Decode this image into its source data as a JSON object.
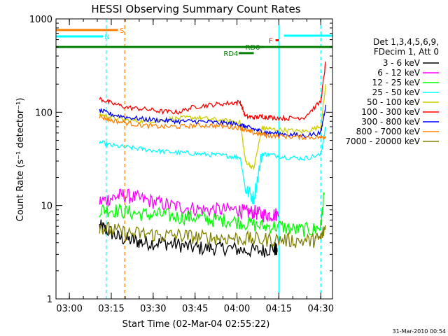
{
  "chart_data": {
    "type": "line",
    "title": "HESSI Observing Summary Count Rates",
    "xlabel": "Start Time (02-Mar-04 02:55:22)",
    "ylabel": "Count Rate (s⁻¹ detector⁻¹)",
    "y_scale": "log",
    "ylim": [
      1,
      1000
    ],
    "y_ticks": [
      {
        "v": 1,
        "label": "1"
      },
      {
        "v": 10,
        "label": "10"
      },
      {
        "v": 100,
        "label": "100"
      },
      {
        "v": 1000,
        "label": "1000"
      }
    ],
    "x_axis_range_hours": [
      2.92,
      4.57
    ],
    "x_ticks": [
      {
        "t": 3.0,
        "label": "03:00"
      },
      {
        "t": 3.25,
        "label": "03:15"
      },
      {
        "t": 3.5,
        "label": "03:30"
      },
      {
        "t": 3.75,
        "label": "03:45"
      },
      {
        "t": 4.0,
        "label": "04:00"
      },
      {
        "t": 4.25,
        "label": "04:15"
      },
      {
        "t": 4.5,
        "label": "04:30"
      }
    ],
    "legend_header": [
      "Det 1,3,4,5,6,9,",
      "FDecim 1, Att 0"
    ],
    "legend_placement": "right",
    "series": [
      {
        "name": "3 - 6 keV",
        "color": "#000000",
        "x": [
          3.18,
          3.22,
          3.3,
          3.38,
          3.45,
          3.55,
          3.65,
          3.75,
          3.85,
          3.95,
          4.05,
          4.15,
          4.22,
          4.24
        ],
        "y": [
          6,
          5.5,
          4.5,
          4.2,
          4,
          4,
          3.8,
          3.5,
          3.5,
          3.5,
          3.3,
          3.3,
          3.5,
          3.2
        ]
      },
      {
        "name": "6 - 12 keV",
        "color": "#ff00ff",
        "x": [
          3.18,
          3.25,
          3.32,
          3.4,
          3.5,
          3.6,
          3.7,
          3.8,
          3.9,
          4.0,
          4.05,
          4.1,
          4.15,
          4.2,
          4.25
        ],
        "y": [
          11,
          12,
          13,
          12,
          11,
          10,
          9.5,
          9,
          9,
          9,
          8.5,
          8.5,
          8,
          8,
          8
        ]
      },
      {
        "name": "12 - 25 keV",
        "color": "#00ff00",
        "x": [
          3.18,
          3.25,
          3.35,
          3.45,
          3.55,
          3.65,
          3.75,
          3.85,
          3.95,
          4.05,
          4.15,
          4.25,
          4.35,
          4.45,
          4.5,
          4.52
        ],
        "y": [
          9,
          9,
          8.5,
          8,
          8,
          7.5,
          7.5,
          7,
          7,
          6.5,
          6,
          6,
          5.5,
          5.5,
          6,
          13
        ]
      },
      {
        "name": "25 - 50 keV",
        "color": "#00ffff",
        "x": [
          3.18,
          3.25,
          3.35,
          3.45,
          3.55,
          3.65,
          3.75,
          3.85,
          3.95,
          4.02,
          4.05,
          4.1,
          4.15,
          4.2,
          4.3,
          4.4,
          4.5,
          4.53
        ],
        "y": [
          48,
          44,
          42,
          40,
          38,
          37,
          36,
          35,
          34,
          33,
          15,
          12,
          36,
          35,
          33,
          32,
          35,
          70
        ]
      },
      {
        "name": "50 - 100 keV",
        "color": "#cccc00",
        "x": [
          3.18,
          3.25,
          3.35,
          3.45,
          3.55,
          3.65,
          3.75,
          3.85,
          3.95,
          4.02,
          4.05,
          4.1,
          4.15,
          4.2,
          4.3,
          4.4,
          4.5,
          4.53
        ],
        "y": [
          95,
          88,
          82,
          80,
          82,
          86,
          88,
          84,
          80,
          78,
          30,
          25,
          68,
          66,
          64,
          62,
          70,
          200
        ]
      },
      {
        "name": "100 - 300 keV",
        "color": "#ff0000",
        "x": [
          3.18,
          3.25,
          3.35,
          3.45,
          3.55,
          3.65,
          3.75,
          3.85,
          3.95,
          4.02,
          4.05,
          4.1,
          4.15,
          4.2,
          4.3,
          4.4,
          4.5,
          4.53
        ],
        "y": [
          140,
          125,
          112,
          108,
          102,
          100,
          115,
          120,
          125,
          128,
          90,
          88,
          90,
          88,
          86,
          88,
          130,
          350
        ]
      },
      {
        "name": "300 - 800 keV",
        "color": "#0000ff",
        "x": [
          3.18,
          3.25,
          3.35,
          3.45,
          3.55,
          3.65,
          3.75,
          3.85,
          3.95,
          4.02,
          4.05,
          4.1,
          4.15,
          4.2,
          4.3,
          4.4,
          4.5,
          4.53
        ],
        "y": [
          105,
          95,
          88,
          84,
          82,
          80,
          80,
          78,
          76,
          74,
          70,
          66,
          62,
          60,
          58,
          56,
          60,
          120
        ]
      },
      {
        "name": "800 - 7000 keV",
        "color": "#ff8000",
        "x": [
          3.18,
          3.25,
          3.35,
          3.45,
          3.55,
          3.65,
          3.75,
          3.85,
          3.95,
          4.02,
          4.05,
          4.1,
          4.15,
          4.2,
          4.3,
          4.4,
          4.5,
          4.53
        ],
        "y": [
          90,
          82,
          76,
          72,
          70,
          70,
          72,
          72,
          70,
          68,
          64,
          60,
          58,
          56,
          55,
          54,
          54,
          55
        ]
      },
      {
        "name": "7000 - 20000 keV",
        "color": "#808000",
        "x": [
          3.18,
          3.25,
          3.35,
          3.45,
          3.55,
          3.65,
          3.75,
          3.85,
          3.95,
          4.05,
          4.15,
          4.25,
          4.35,
          4.45,
          4.5,
          4.53
        ],
        "y": [
          6,
          5.5,
          5,
          5,
          4.8,
          4.8,
          4.6,
          4.5,
          4.5,
          4.4,
          4.3,
          4.3,
          4.2,
          4.2,
          4.5,
          6
        ]
      }
    ],
    "state_bars": [
      {
        "label": "S",
        "color": "#ff8000",
        "x0": 2.92,
        "x1": 3.29,
        "y": 760,
        "label_x": 3.3
      },
      {
        "label": "N",
        "color": "#00ffff",
        "x0": 2.92,
        "x1": 3.2,
        "y": 650,
        "label_x": 3.21
      },
      {
        "label": "N",
        "color": "#00ffff",
        "x0": 4.28,
        "x1": 4.57,
        "y": 660,
        "label_x": null
      },
      {
        "label": "",
        "color": "#008000",
        "x0": 2.92,
        "x1": 4.57,
        "y": 500,
        "label_x": null
      },
      {
        "label": "RD4",
        "color": "#008000",
        "x0": 4.01,
        "x1": 4.1,
        "y": 430,
        "label_x": 3.92
      },
      {
        "label": "RD0",
        "color": "#008000",
        "x0": 4.05,
        "x1": 4.16,
        "y": 500,
        "label_x": 4.05
      },
      {
        "label": "F",
        "color": "#ff0000",
        "x0": 4.23,
        "x1": 4.25,
        "y": 590,
        "label_x": 4.19
      }
    ],
    "vlines": [
      {
        "t": 3.22,
        "color": "#00ffff",
        "style": "dashed"
      },
      {
        "t": 3.33,
        "color": "#ff8000",
        "style": "dashed"
      },
      {
        "t": 4.25,
        "color": "#00ffff",
        "style": "solid"
      },
      {
        "t": 4.5,
        "color": "#00ffff",
        "style": "dashed"
      }
    ],
    "timestamp": "31-Mar-2010 00:54"
  }
}
